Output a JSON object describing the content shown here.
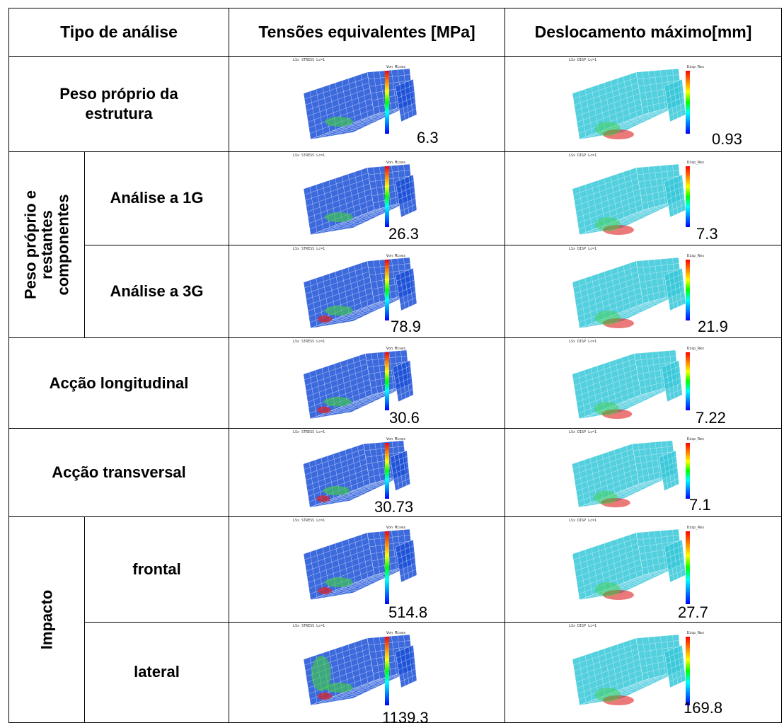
{
  "headers": {
    "type": "Tipo de análise",
    "stress": "Tensões equivalentes [MPa]",
    "disp": "Deslocamento máximo[mm]"
  },
  "groups": {
    "loads": "Peso próprio e restantes componentes",
    "impact": "Impacto"
  },
  "rows": [
    {
      "label": "Peso próprio da estrutura",
      "stress": "6.3",
      "disp": "0.93"
    },
    {
      "label": "Análise a 1G",
      "stress": "26.3",
      "disp": "7.3"
    },
    {
      "label": "Análise a 3G",
      "stress": "78.9",
      "disp": "21.9"
    },
    {
      "label": "Acção longitudinal",
      "stress": "30.6",
      "disp": "7.22"
    },
    {
      "label": "Acção transversal",
      "stress": "30.73",
      "disp": "7.1"
    },
    {
      "label": "frontal",
      "stress": "514.8",
      "disp": "27.7"
    },
    {
      "label": "lateral",
      "stress": "1139.3",
      "disp": "169.8"
    }
  ],
  "plot_text": {
    "stress_caption": "LSx STRESS Lc=1",
    "disp_caption": "LSx DISP Lc=1",
    "stress_legend": "Von Mises",
    "disp_legend": "Disp_Res"
  },
  "colors": {
    "mesh_stress": "#1a4fd6",
    "mesh_disp": "#35c8d8",
    "hot": "#e02020",
    "mid": "#3fd13f"
  }
}
